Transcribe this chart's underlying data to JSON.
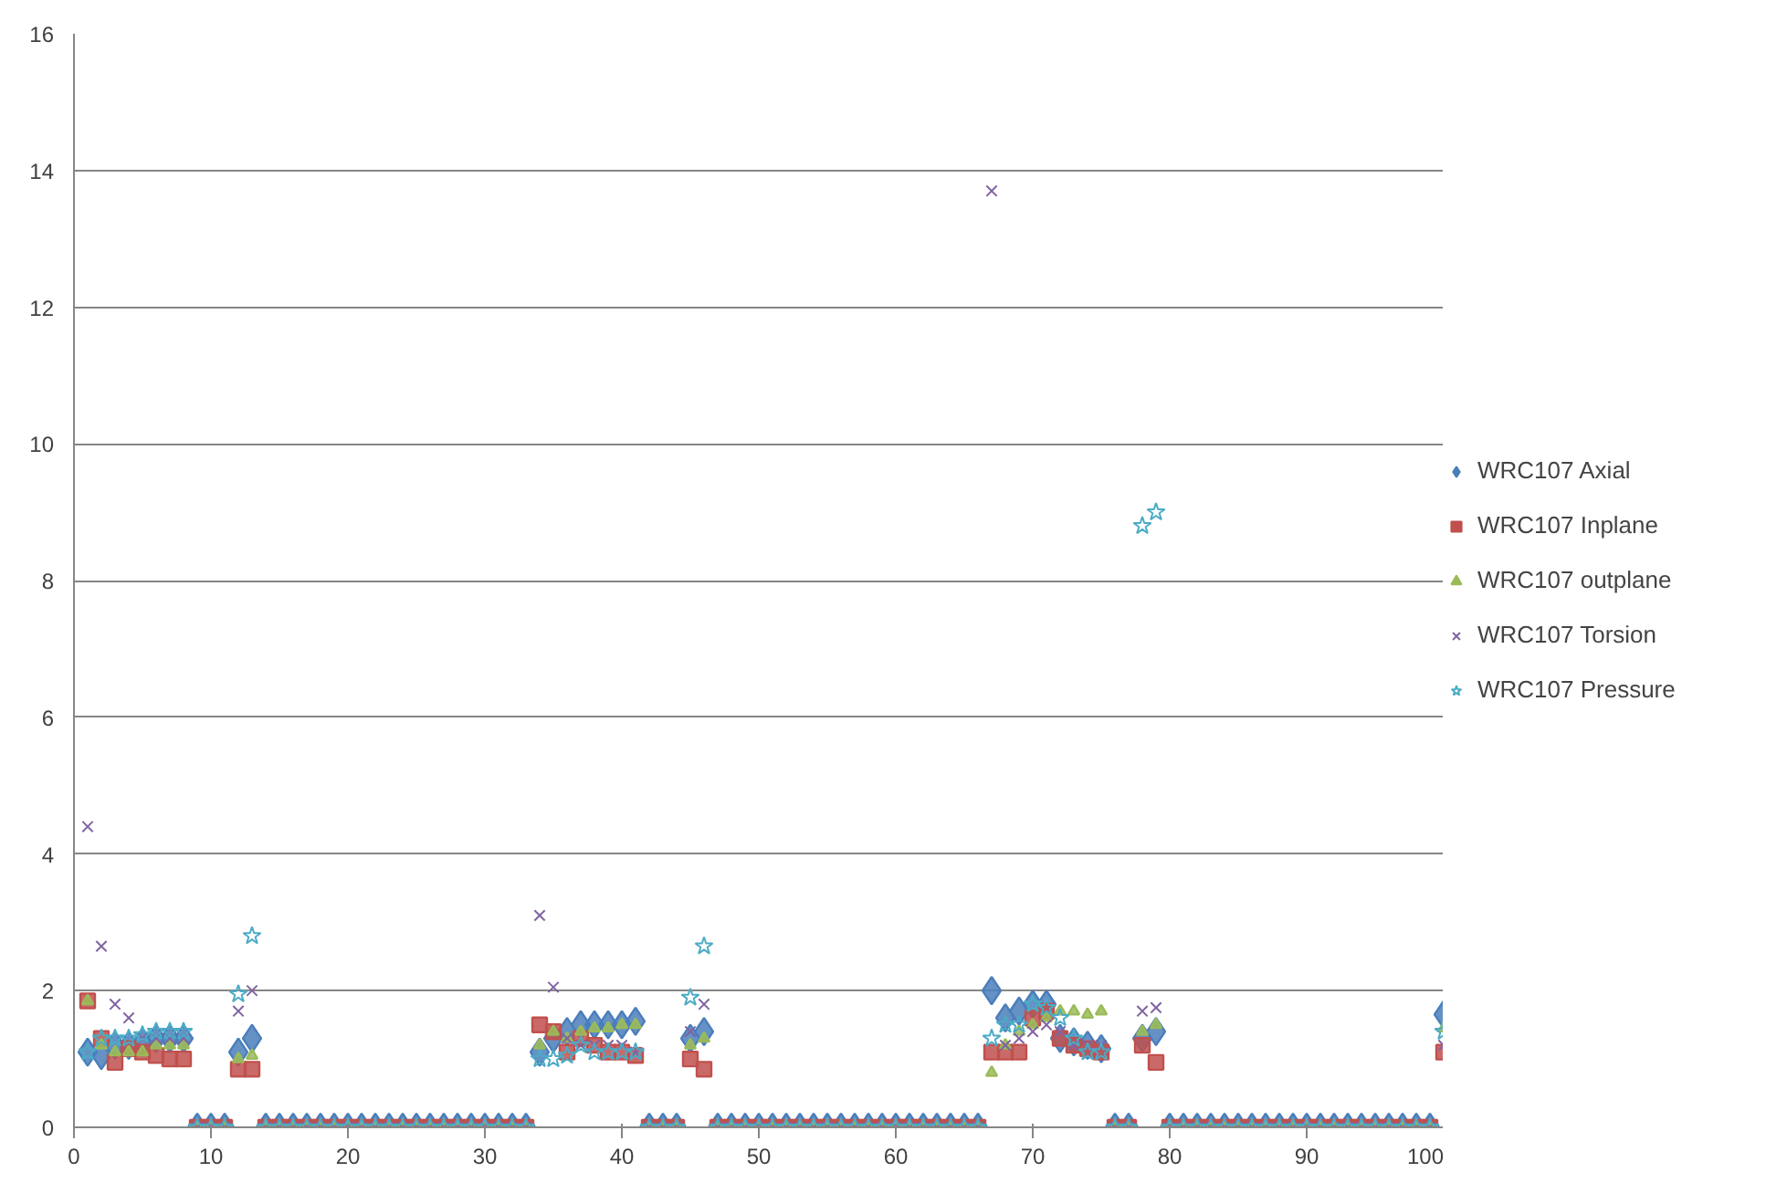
{
  "chart_data": {
    "type": "scatter",
    "x": [
      1,
      2,
      3,
      4,
      5,
      6,
      7,
      8,
      9,
      10,
      11,
      12,
      13,
      14,
      15,
      16,
      17,
      18,
      19,
      20,
      21,
      22,
      23,
      24,
      25,
      26,
      27,
      28,
      29,
      30,
      31,
      32,
      33,
      34,
      35,
      36,
      37,
      38,
      39,
      40,
      41,
      42,
      43,
      44,
      45,
      46,
      47,
      48,
      49,
      50,
      51,
      52,
      53,
      54,
      55,
      56,
      57,
      58,
      59,
      60,
      61,
      62,
      63,
      64,
      65,
      66,
      67,
      68,
      69,
      70,
      71,
      72,
      73,
      74,
      75,
      76,
      77,
      78,
      79,
      80,
      81,
      82,
      83,
      84,
      85,
      86,
      87,
      88,
      89,
      90,
      91,
      92,
      93,
      94,
      95,
      96,
      97,
      98,
      99,
      100
    ],
    "series": [
      {
        "name": "WRC107 Axial",
        "color": "#4a7ebb",
        "marker": "diamond",
        "values": [
          1.1,
          1.05,
          1.2,
          1.2,
          1.25,
          1.3,
          1.3,
          1.3,
          0,
          0,
          0,
          1.1,
          1.3,
          0,
          0,
          0,
          0,
          0,
          0,
          0,
          0,
          0,
          0,
          0,
          0,
          0,
          0,
          0,
          0,
          0,
          0,
          0,
          0,
          1.1,
          1.3,
          1.4,
          1.5,
          1.5,
          1.5,
          1.5,
          1.55,
          0,
          0,
          0,
          1.3,
          1.4,
          0,
          0,
          0,
          0,
          0,
          0,
          0,
          0,
          0,
          0,
          0,
          0,
          0,
          0,
          0,
          0,
          0,
          0,
          0,
          0,
          2.0,
          1.6,
          1.7,
          1.8,
          1.8,
          1.3,
          1.25,
          1.2,
          1.15,
          0,
          0,
          1.3,
          1.4,
          0,
          0,
          0,
          0,
          0,
          0,
          0,
          0,
          0,
          0,
          0,
          0,
          0,
          0,
          0,
          0,
          0,
          0,
          0,
          0,
          1.65
        ]
      },
      {
        "name": "WRC107 Inplane",
        "color": "#c0504d",
        "marker": "square",
        "values": [
          1.85,
          1.3,
          0.95,
          1.15,
          1.1,
          1.05,
          1.0,
          1.0,
          0,
          0,
          0,
          0.85,
          0.85,
          0,
          0,
          0,
          0,
          0,
          0,
          0,
          0,
          0,
          0,
          0,
          0,
          0,
          0,
          0,
          0,
          0,
          0,
          0,
          0,
          1.5,
          1.4,
          1.1,
          1.3,
          1.2,
          1.1,
          1.1,
          1.05,
          0,
          0,
          0,
          1.0,
          0.85,
          0,
          0,
          0,
          0,
          0,
          0,
          0,
          0,
          0,
          0,
          0,
          0,
          0,
          0,
          0,
          0,
          0,
          0,
          0,
          0,
          1.1,
          1.1,
          1.1,
          1.6,
          1.7,
          1.3,
          1.2,
          1.15,
          1.1,
          0,
          0,
          1.2,
          0.95,
          0,
          0,
          0,
          0,
          0,
          0,
          0,
          0,
          0,
          0,
          0,
          0,
          0,
          0,
          0,
          0,
          0,
          0,
          0,
          0,
          1.1
        ]
      },
      {
        "name": "WRC107 outplane",
        "color": "#9bbb59",
        "marker": "triangle",
        "values": [
          1.85,
          1.2,
          1.1,
          1.1,
          1.1,
          1.2,
          1.2,
          1.2,
          0,
          0,
          0,
          1.0,
          1.05,
          0,
          0,
          0,
          0,
          0,
          0,
          0,
          0,
          0,
          0,
          0,
          0,
          0,
          0,
          0,
          0,
          0,
          0,
          0,
          0,
          1.2,
          1.4,
          1.3,
          1.4,
          1.45,
          1.45,
          1.5,
          1.5,
          0,
          0,
          0,
          1.2,
          1.3,
          0,
          0,
          0,
          0,
          0,
          0,
          0,
          0,
          0,
          0,
          0,
          0,
          0,
          0,
          0,
          0,
          0,
          0,
          0,
          0,
          0.8,
          1.2,
          1.4,
          1.5,
          1.6,
          1.7,
          1.7,
          1.65,
          1.7,
          0,
          0,
          1.4,
          1.5,
          0,
          0,
          0,
          0,
          0,
          0,
          0,
          0,
          0,
          0,
          0,
          0,
          0,
          0,
          0,
          0,
          0,
          0,
          0,
          0,
          1.45
        ]
      },
      {
        "name": "WRC107 Torsion",
        "color": "#8064a2",
        "marker": "cross",
        "values": [
          4.4,
          2.65,
          1.8,
          1.6,
          1.3,
          1.3,
          1.3,
          1.3,
          0,
          0,
          0,
          1.7,
          2.0,
          0,
          0,
          0,
          0,
          0,
          0,
          0,
          0,
          0,
          0,
          0,
          0,
          0,
          0,
          0,
          0,
          0,
          0,
          0,
          0,
          3.1,
          2.05,
          1.3,
          1.2,
          1.2,
          1.2,
          1.2,
          1.1,
          0,
          0,
          0,
          1.4,
          1.8,
          0,
          0,
          0,
          0,
          0,
          0,
          0,
          0,
          0,
          0,
          0,
          0,
          0,
          0,
          0,
          0,
          0,
          0,
          0,
          0,
          13.7,
          1.2,
          1.3,
          1.4,
          1.5,
          1.4,
          1.2,
          1.2,
          1.2,
          0,
          0,
          1.7,
          1.75,
          0,
          0,
          0,
          0,
          0,
          0,
          0,
          0,
          0,
          0,
          0,
          0,
          0,
          0,
          0,
          0,
          0,
          0,
          0,
          0,
          1.2
        ]
      },
      {
        "name": "WRC107 Pressure",
        "color": "#4bacc6",
        "marker": "star",
        "values": [
          1.1,
          1.3,
          1.3,
          1.3,
          1.35,
          1.4,
          1.4,
          1.4,
          0,
          0,
          0,
          1.95,
          2.8,
          0,
          0,
          0,
          0,
          0,
          0,
          0,
          0,
          0,
          0,
          0,
          0,
          0,
          0,
          0,
          0,
          0,
          0,
          0,
          0,
          1.0,
          1.0,
          1.05,
          1.2,
          1.1,
          1.1,
          1.1,
          1.1,
          0,
          0,
          0,
          1.9,
          2.65,
          0,
          0,
          0,
          0,
          0,
          0,
          0,
          0,
          0,
          0,
          0,
          0,
          0,
          0,
          0,
          0,
          0,
          0,
          0,
          0,
          1.3,
          1.5,
          1.5,
          1.8,
          1.75,
          1.6,
          1.3,
          1.1,
          1.1,
          0,
          0,
          8.8,
          9.0,
          0,
          0,
          0,
          0,
          0,
          0,
          0,
          0,
          0,
          0,
          0,
          0,
          0,
          0,
          0,
          0,
          0,
          0,
          0,
          0,
          1.4
        ]
      }
    ],
    "xlim": [
      0,
      100
    ],
    "xticks": [
      0,
      10,
      20,
      30,
      40,
      50,
      60,
      70,
      80,
      90,
      100
    ],
    "ylim": [
      0,
      16
    ],
    "yticks": [
      0,
      2,
      4,
      6,
      8,
      10,
      12,
      14,
      16
    ],
    "grid": "y",
    "legend": "right"
  }
}
